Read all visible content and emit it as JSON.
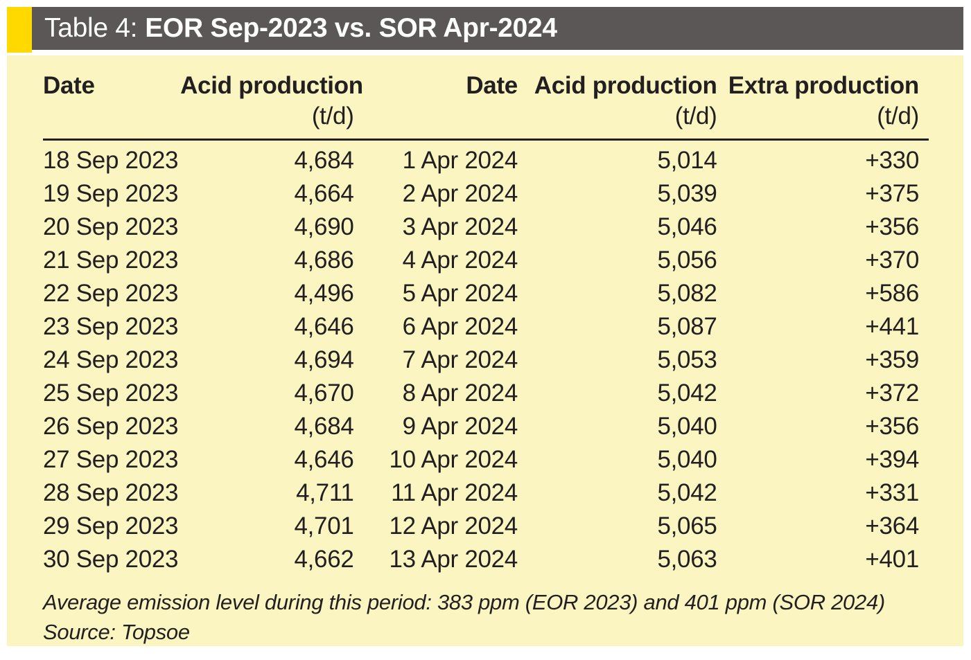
{
  "header": {
    "prefix": "Table 4:",
    "title": "EOR Sep-2023 vs. SOR Apr-2024"
  },
  "colors": {
    "accent_yellow": "#ffd900",
    "header_gray": "#5a5756",
    "body_yellow": "#faf5c1",
    "text_color": "#231f20",
    "title_text": "#ffffff"
  },
  "table": {
    "columns": [
      {
        "label": "Date",
        "unit": ""
      },
      {
        "label": "Acid production",
        "unit": "(t/d)"
      },
      {
        "label": "Date",
        "unit": ""
      },
      {
        "label": "Acid production",
        "unit": "(t/d)"
      },
      {
        "label": "Extra production",
        "unit": "(t/d)"
      }
    ],
    "rows": [
      [
        "18 Sep 2023",
        "4,684",
        "1 Apr 2024",
        "5,014",
        "+330"
      ],
      [
        "19 Sep 2023",
        "4,664",
        "2 Apr 2024",
        "5,039",
        "+375"
      ],
      [
        "20 Sep 2023",
        "4,690",
        "3 Apr 2024",
        "5,046",
        "+356"
      ],
      [
        "21 Sep 2023",
        "4,686",
        "4 Apr 2024",
        "5,056",
        "+370"
      ],
      [
        "22 Sep 2023",
        "4,496",
        "5 Apr 2024",
        "5,082",
        "+586"
      ],
      [
        "23 Sep 2023",
        "4,646",
        "6 Apr 2024",
        "5,087",
        "+441"
      ],
      [
        "24 Sep 2023",
        "4,694",
        "7 Apr 2024",
        "5,053",
        "+359"
      ],
      [
        "25 Sep 2023",
        "4,670",
        "8 Apr 2024",
        "5,042",
        "+372"
      ],
      [
        "26 Sep 2023",
        "4,684",
        "9 Apr 2024",
        "5,040",
        "+356"
      ],
      [
        "27 Sep 2023",
        "4,646",
        "10 Apr 2024",
        "5,040",
        "+394"
      ],
      [
        "28 Sep 2023",
        "4,711",
        "11 Apr 2024",
        "5,042",
        "+331"
      ],
      [
        "29 Sep 2023",
        "4,701",
        "12 Apr 2024",
        "5,065",
        "+364"
      ],
      [
        "30 Sep 2023",
        "4,662",
        "13 Apr 2024",
        "5,063",
        "+401"
      ]
    ]
  },
  "footnotes": {
    "emission": "Average emission level during this period: 383 ppm (EOR 2023) and 401 ppm (SOR 2024)",
    "source": "Source: Topsoe"
  }
}
